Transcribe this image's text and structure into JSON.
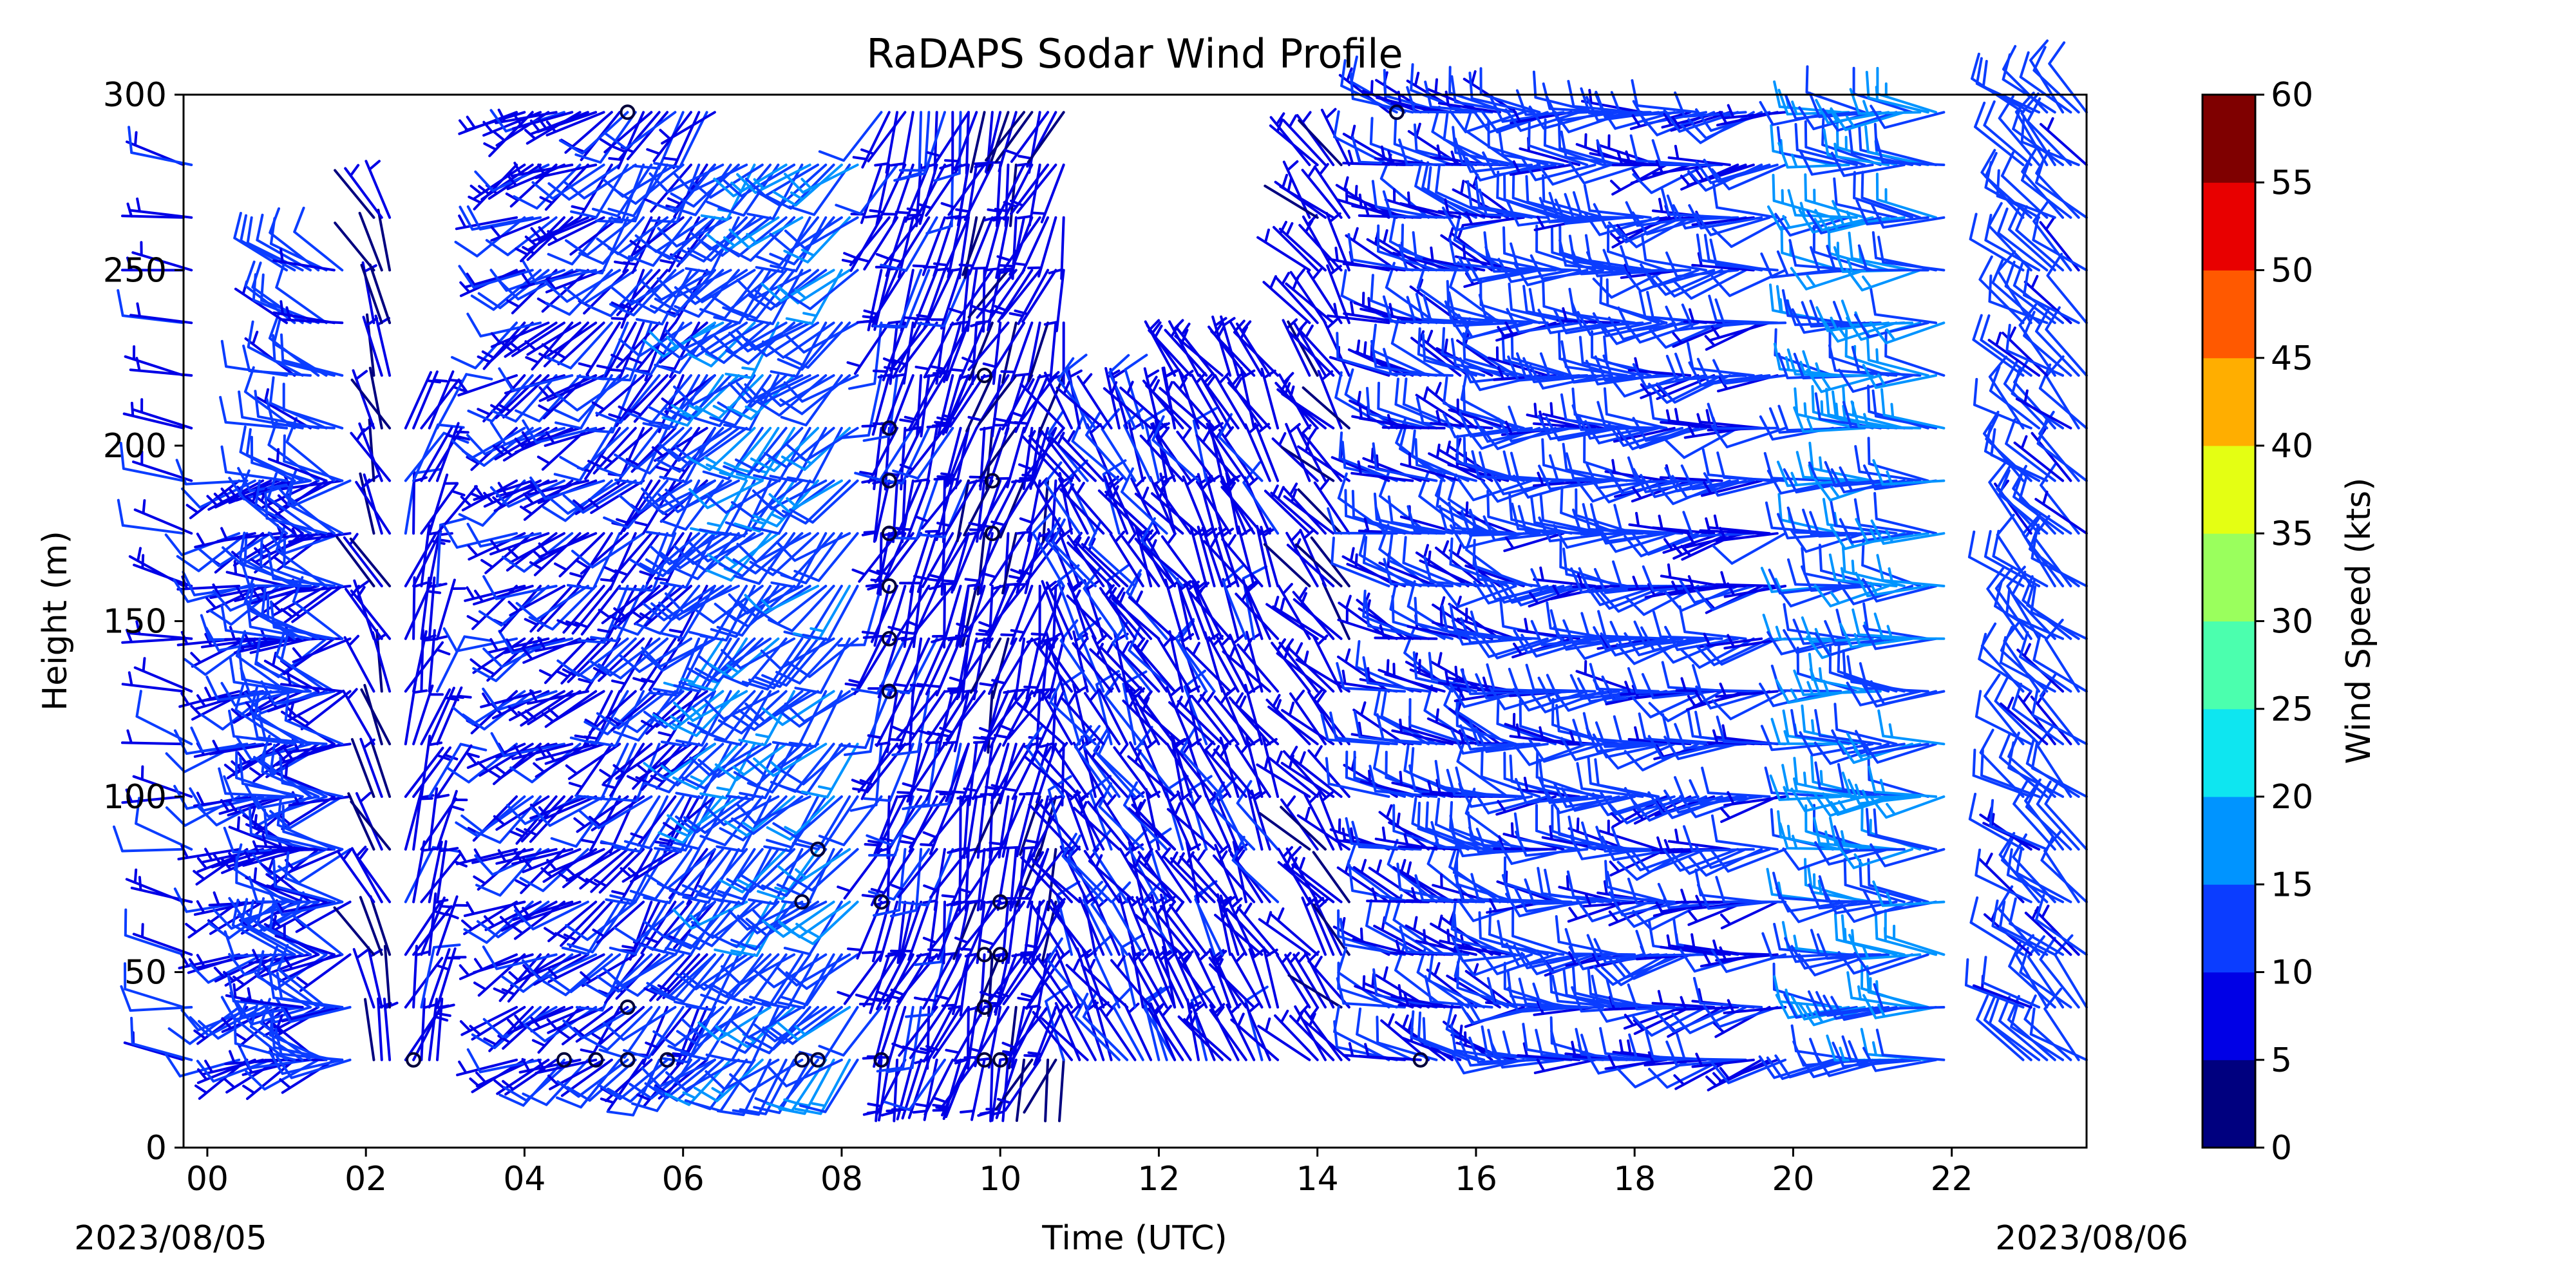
{
  "chart_data": {
    "type": "wind-barb",
    "title": "RaDAPS Sodar Wind Profile",
    "xlabel": "Time (UTC)",
    "ylabel": "Height (m)",
    "x_unit": "hours UTC",
    "xlim": [
      -0.3,
      23.7
    ],
    "ylim": [
      0,
      300
    ],
    "x_ticks": [
      {
        "value": 0,
        "label": "00"
      },
      {
        "value": 2,
        "label": "02"
      },
      {
        "value": 4,
        "label": "04"
      },
      {
        "value": 6,
        "label": "06"
      },
      {
        "value": 8,
        "label": "08"
      },
      {
        "value": 10,
        "label": "10"
      },
      {
        "value": 12,
        "label": "12"
      },
      {
        "value": 14,
        "label": "14"
      },
      {
        "value": 16,
        "label": "16"
      },
      {
        "value": 18,
        "label": "18"
      },
      {
        "value": 20,
        "label": "20"
      },
      {
        "value": 22,
        "label": "22"
      }
    ],
    "y_ticks": [
      {
        "value": 0,
        "label": "0"
      },
      {
        "value": 50,
        "label": "50"
      },
      {
        "value": 100,
        "label": "100"
      },
      {
        "value": 150,
        "label": "150"
      },
      {
        "value": 200,
        "label": "200"
      },
      {
        "value": 250,
        "label": "250"
      },
      {
        "value": 300,
        "label": "300"
      }
    ],
    "date_start": "2023/08/05",
    "date_end": "2023/08/06",
    "colorbar": {
      "label": "Wind Speed (kts)",
      "min": 0,
      "max": 60,
      "ticks": [
        "0",
        "5",
        "10",
        "15",
        "20",
        "25",
        "30",
        "35",
        "40",
        "45",
        "50",
        "55",
        "60"
      ],
      "colors": [
        "#00007f",
        "#0000e6",
        "#0b3dff",
        "#0094ff",
        "#0ee6f0",
        "#4bffae",
        "#9aff5d",
        "#e4ff13",
        "#ffae00",
        "#ff5900",
        "#e80000",
        "#7f0000"
      ]
    },
    "heights": [
      25,
      40,
      55,
      70,
      85,
      100,
      115,
      130,
      145,
      160,
      175,
      190,
      205,
      220,
      235,
      250,
      265,
      280,
      295
    ],
    "segments": [
      {
        "x0": -0.3,
        "x1": -0.2,
        "top": 280,
        "dir": 280,
        "spd": 9
      },
      {
        "x0": 0.4,
        "x1": 1.8,
        "top": 190,
        "dir": 250,
        "spd": 9
      },
      {
        "x0": 1.0,
        "x1": 1.7,
        "top": 250,
        "dir": 290,
        "spd": 12
      },
      {
        "x0": 2.1,
        "x1": 2.3,
        "top": 265,
        "dir": 340,
        "spd": 5
      },
      {
        "x0": 2.5,
        "x1": 2.9,
        "top": 210,
        "dir": 20,
        "spd": 8
      },
      {
        "x0": 3.9,
        "x1": 5.0,
        "top": 295,
        "dir": 240,
        "spd": 9
      },
      {
        "x0": 5.1,
        "x1": 6.4,
        "top": 295,
        "dir": 220,
        "spd": 10
      },
      {
        "x0": 6.4,
        "x1": 8.2,
        "top": 280,
        "dir": 225,
        "spd": 13
      },
      {
        "x0": 8.5,
        "x1": 9.6,
        "top": 295,
        "dir": 200,
        "spd": 8
      },
      {
        "x0": 9.6,
        "x1": 10.8,
        "top": 295,
        "dir": 200,
        "spd": 7
      },
      {
        "x0": 10.8,
        "x1": 12.2,
        "top": 205,
        "dir": 330,
        "spd": 9
      },
      {
        "x0": 12.2,
        "x1": 13.5,
        "top": 220,
        "dir": 330,
        "spd": 8
      },
      {
        "x0": 13.9,
        "x1": 14.4,
        "top": 280,
        "dir": 320,
        "spd": 7
      },
      {
        "x0": 14.9,
        "x1": 16.5,
        "top": 295,
        "dir": 290,
        "spd": 10
      },
      {
        "x0": 16.5,
        "x1": 18.4,
        "top": 295,
        "dir": 270,
        "spd": 12
      },
      {
        "x0": 18.4,
        "x1": 19.9,
        "top": 295,
        "dir": 260,
        "spd": 11
      },
      {
        "x0": 20.5,
        "x1": 21.9,
        "top": 295,
        "dir": 270,
        "spd": 15
      },
      {
        "x0": 22.9,
        "x1": 23.7,
        "top": 295,
        "dir": 310,
        "spd": 12
      }
    ],
    "calm_points": [
      {
        "x": 5.3,
        "y": 295
      },
      {
        "x": 15.0,
        "y": 295
      },
      {
        "x": 8.6,
        "y": 205
      },
      {
        "x": 8.6,
        "y": 190
      },
      {
        "x": 8.6,
        "y": 175
      },
      {
        "x": 8.6,
        "y": 160
      },
      {
        "x": 8.6,
        "y": 145
      },
      {
        "x": 8.6,
        "y": 130
      },
      {
        "x": 9.8,
        "y": 220
      },
      {
        "x": 9.9,
        "y": 190
      },
      {
        "x": 9.9,
        "y": 175
      },
      {
        "x": 7.7,
        "y": 85
      },
      {
        "x": 7.5,
        "y": 70
      },
      {
        "x": 8.5,
        "y": 70
      },
      {
        "x": 9.8,
        "y": 55
      },
      {
        "x": 10.0,
        "y": 55
      },
      {
        "x": 10.0,
        "y": 70
      },
      {
        "x": 5.3,
        "y": 40
      },
      {
        "x": 9.8,
        "y": 40
      },
      {
        "x": 2.6,
        "y": 25
      },
      {
        "x": 4.5,
        "y": 25
      },
      {
        "x": 4.9,
        "y": 25
      },
      {
        "x": 5.3,
        "y": 25
      },
      {
        "x": 5.8,
        "y": 25
      },
      {
        "x": 7.5,
        "y": 25
      },
      {
        "x": 7.7,
        "y": 25
      },
      {
        "x": 8.5,
        "y": 25
      },
      {
        "x": 9.8,
        "y": 25
      },
      {
        "x": 10.0,
        "y": 25
      },
      {
        "x": 15.3,
        "y": 25
      }
    ]
  }
}
